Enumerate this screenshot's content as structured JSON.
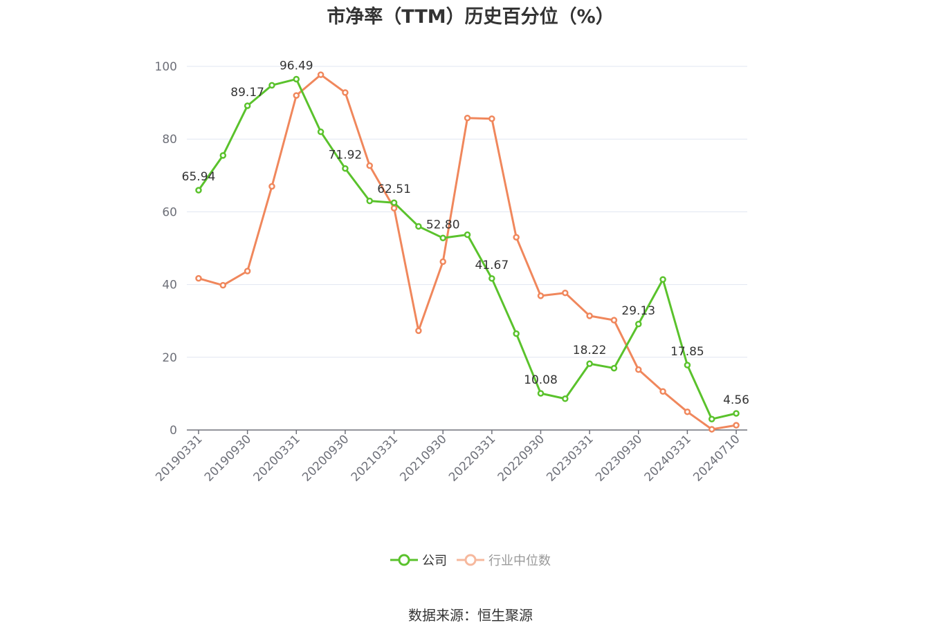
{
  "chart_data": {
    "type": "line",
    "title": "市净率（TTM）历史百分位（%）",
    "source": "数据来源：恒生聚源",
    "x_tick_labels": [
      "20190331",
      "20190930",
      "20200331",
      "20200930",
      "20210331",
      "20210930",
      "20220331",
      "20220930",
      "20230331",
      "20230930",
      "20240331",
      "20240710"
    ],
    "y_tick_labels": [
      "0",
      "20",
      "40",
      "60",
      "80",
      "100"
    ],
    "ylim": [
      0,
      100
    ],
    "grid": true,
    "legend_position": "bottom-center",
    "colors": {
      "company": "#5ac22c",
      "industry": "#f0875c"
    },
    "series": [
      {
        "name": "公司",
        "values": [
          65.94,
          75.5,
          89.17,
          94.8,
          96.49,
          82.0,
          71.92,
          63.0,
          62.51,
          56.0,
          52.8,
          53.7,
          41.67,
          26.5,
          10.08,
          8.6,
          18.22,
          17.0,
          29.13,
          41.4,
          17.85,
          3.0,
          4.56
        ],
        "labels": [
          "65.94",
          "",
          "89.17",
          "",
          "96.49",
          "",
          "71.92",
          "",
          "62.51",
          "",
          "52.80",
          "",
          "41.67",
          "",
          "10.08",
          "",
          "18.22",
          "",
          "29.13",
          "",
          "17.85",
          "",
          "4.56"
        ]
      },
      {
        "name": "行业中位数",
        "values": [
          41.7,
          39.8,
          43.7,
          67.0,
          92.0,
          97.7,
          92.8,
          72.7,
          61.0,
          27.3,
          46.3,
          85.8,
          85.6,
          53.0,
          36.9,
          37.7,
          31.4,
          30.2,
          16.6,
          10.6,
          5.0,
          0.2,
          1.3
        ]
      }
    ]
  }
}
